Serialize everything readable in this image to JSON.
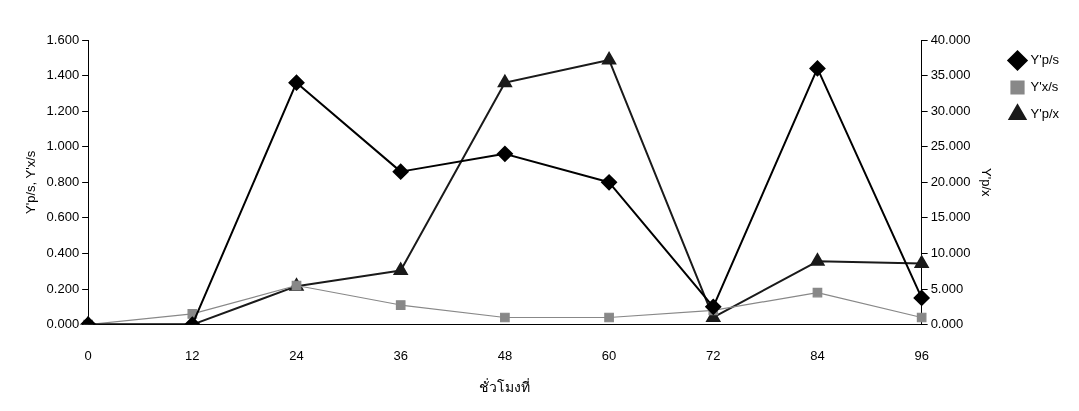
{
  "chart_data": {
    "type": "line",
    "xlabel": "ชั่วโมงที่",
    "ylabel": "Y'p/s, Y'x/s",
    "y2label": "Y'p/x",
    "categories": [
      "0",
      "12",
      "24",
      "36",
      "48",
      "60",
      "72",
      "84",
      "96"
    ],
    "series": [
      {
        "name": "Y'p/s",
        "color": "#000000",
        "marker": "diamond",
        "values": [
          0,
          0,
          1.36,
          0.86,
          0.96,
          0.8,
          0.1,
          1.44,
          0.15
        ]
      },
      {
        "name": "Y'x/s",
        "color": "#888888",
        "marker": "square",
        "values": [
          0,
          0.06,
          0.22,
          0.11,
          0.04,
          0.04,
          0.08,
          0.18,
          0.04
        ]
      },
      {
        "name": "Y'p/x",
        "color": "#1a1a1a",
        "marker": "triangle",
        "axis": "y2",
        "values": [
          0,
          0,
          5.4,
          7.6,
          34,
          37.2,
          1,
          8.9,
          8.6
        ]
      }
    ],
    "ylim": [
      0,
      1.6
    ],
    "yticks": [
      {
        "value": 0,
        "label": "0.000"
      },
      {
        "value": 0.2,
        "label": "0.200"
      },
      {
        "value": 0.4,
        "label": "0.400"
      },
      {
        "value": 0.6,
        "label": "0.600"
      },
      {
        "value": 0.8,
        "label": "0.800"
      },
      {
        "value": 1,
        "label": "1.000"
      },
      {
        "value": 1.2,
        "label": "1.200"
      },
      {
        "value": 1.4,
        "label": "1.400"
      },
      {
        "value": 1.6,
        "label": "1.600"
      }
    ],
    "y2lim": [
      0,
      40
    ],
    "y2ticks": [
      {
        "value": 0,
        "label": "0.000"
      },
      {
        "value": 5,
        "label": "5.000"
      },
      {
        "value": 10,
        "label": "10.000"
      },
      {
        "value": 15,
        "label": "15.000"
      },
      {
        "value": 20,
        "label": "20.000"
      },
      {
        "value": 25,
        "label": "25.000"
      },
      {
        "value": 30,
        "label": "30.000"
      },
      {
        "value": 35,
        "label": "35.000"
      },
      {
        "value": 40,
        "label": "40.000"
      }
    ],
    "grid": false,
    "legend": "top right",
    "line_style": "solid"
  }
}
